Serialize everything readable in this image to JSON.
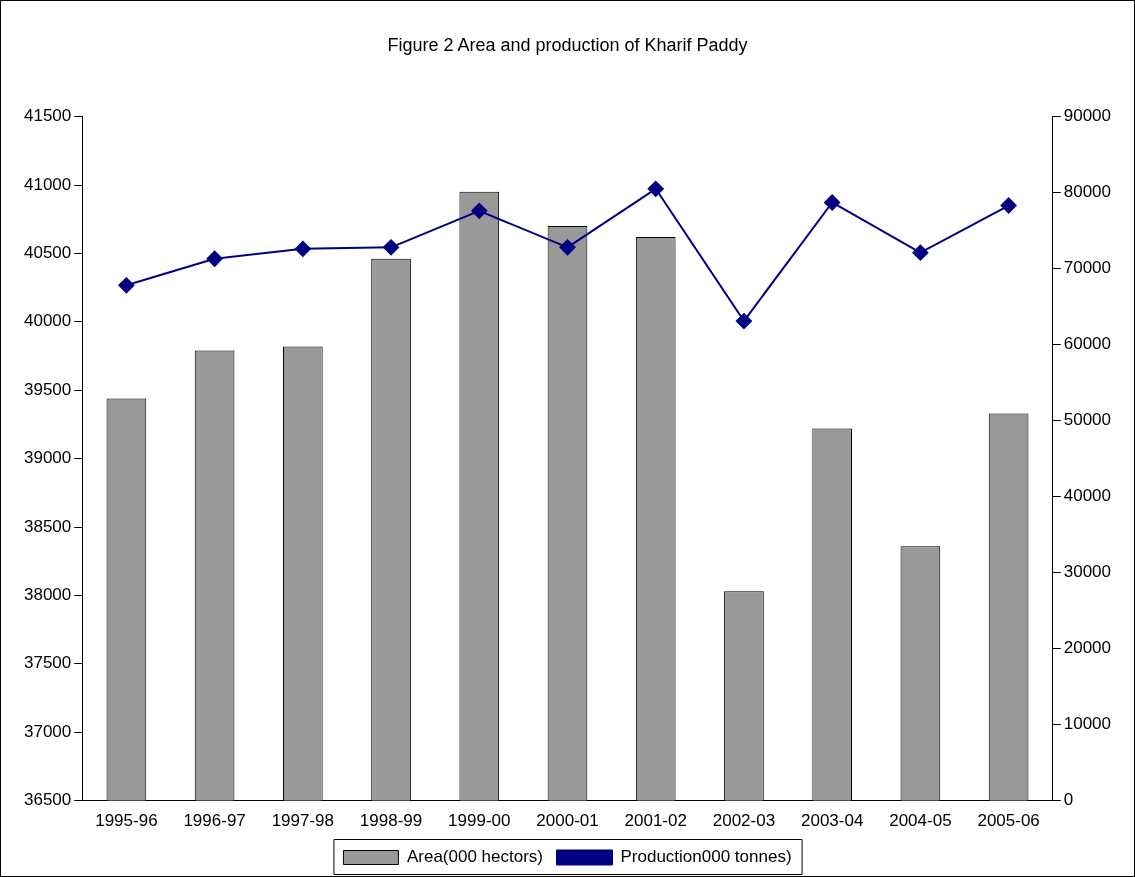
{
  "chart_data": {
    "type": "bar",
    "title": "Figure 2 Area and production of Kharif Paddy",
    "categories": [
      "1995-96",
      "1996-97",
      "1997-98",
      "1998-99",
      "1999-00",
      "2000-01",
      "2001-02",
      "2002-03",
      "2003-04",
      "2004-05",
      "2005-06"
    ],
    "series": [
      {
        "name": "Area(000 hectors)",
        "color": "#999999",
        "values": [
          39440,
          39790,
          39820,
          40460,
          40950,
          40700,
          40620,
          38030,
          39220,
          38360,
          39330
        ]
      },
      {
        "name": "Production000 tonnes)",
        "type": "line",
        "axis": "y2",
        "color": "#000080",
        "marker": "diamond",
        "values": [
          67800,
          71300,
          72600,
          72800,
          77600,
          72800,
          80500,
          63100,
          78700,
          72100,
          78300
        ]
      }
    ],
    "ylim": [
      36500,
      41500
    ],
    "yticks": [
      36500,
      37000,
      37500,
      38000,
      38500,
      39000,
      39500,
      40000,
      40500,
      41000,
      41500
    ],
    "y2lim": [
      0,
      90000
    ],
    "y2ticks": [
      0,
      10000,
      20000,
      30000,
      40000,
      50000,
      60000,
      70000,
      80000,
      90000
    ],
    "legend": "bottom",
    "grid": false
  }
}
